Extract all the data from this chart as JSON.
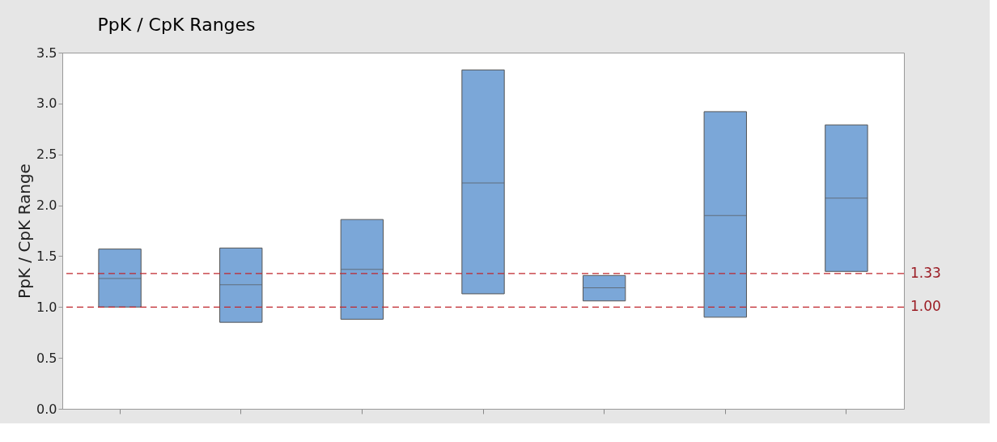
{
  "chart_data": {
    "type": "box",
    "title": "PpK / CpK Ranges",
    "ylabel": "PpK / CpK Range",
    "categories": [
      null,
      null,
      null,
      null,
      null,
      null,
      null
    ],
    "color": "#7ba7d8",
    "boxes": [
      {
        "low": 1.0,
        "q1": 1.0,
        "median": 1.28,
        "q3": 1.57,
        "high": 1.57
      },
      {
        "low": 0.85,
        "q1": 0.85,
        "median": 1.22,
        "q3": 1.58,
        "high": 1.58
      },
      {
        "low": 0.88,
        "q1": 0.88,
        "median": 1.37,
        "q3": 1.86,
        "high": 1.86
      },
      {
        "low": 1.13,
        "q1": 1.13,
        "median": 2.22,
        "q3": 3.33,
        "high": 3.33
      },
      {
        "low": 1.06,
        "q1": 1.06,
        "median": 1.19,
        "q3": 1.31,
        "high": 1.31
      },
      {
        "low": 0.9,
        "q1": 0.9,
        "median": 1.9,
        "q3": 2.92,
        "high": 2.92
      },
      {
        "low": 1.35,
        "q1": 1.35,
        "median": 2.07,
        "q3": 2.79,
        "high": 2.79
      }
    ],
    "ylim": [
      0,
      3.5
    ],
    "yticks": [
      {
        "value": 0,
        "label": "0.0"
      },
      0.5,
      {
        "value": 1,
        "label": "1.0"
      },
      1.5,
      {
        "value": 2,
        "label": "2.0"
      },
      2.5,
      {
        "value": 3,
        "label": "3.0"
      },
      3.5
    ],
    "tick_labels": "y",
    "grid": false,
    "ref_lines": [
      {
        "axis": "y",
        "value": 1.33,
        "label": "1.33",
        "color": "#c0272d",
        "line_style": "dashed"
      },
      {
        "axis": "y",
        "value": 1.0,
        "label": "1.00",
        "color": "#c0272d",
        "line_style": "dashed"
      }
    ]
  }
}
